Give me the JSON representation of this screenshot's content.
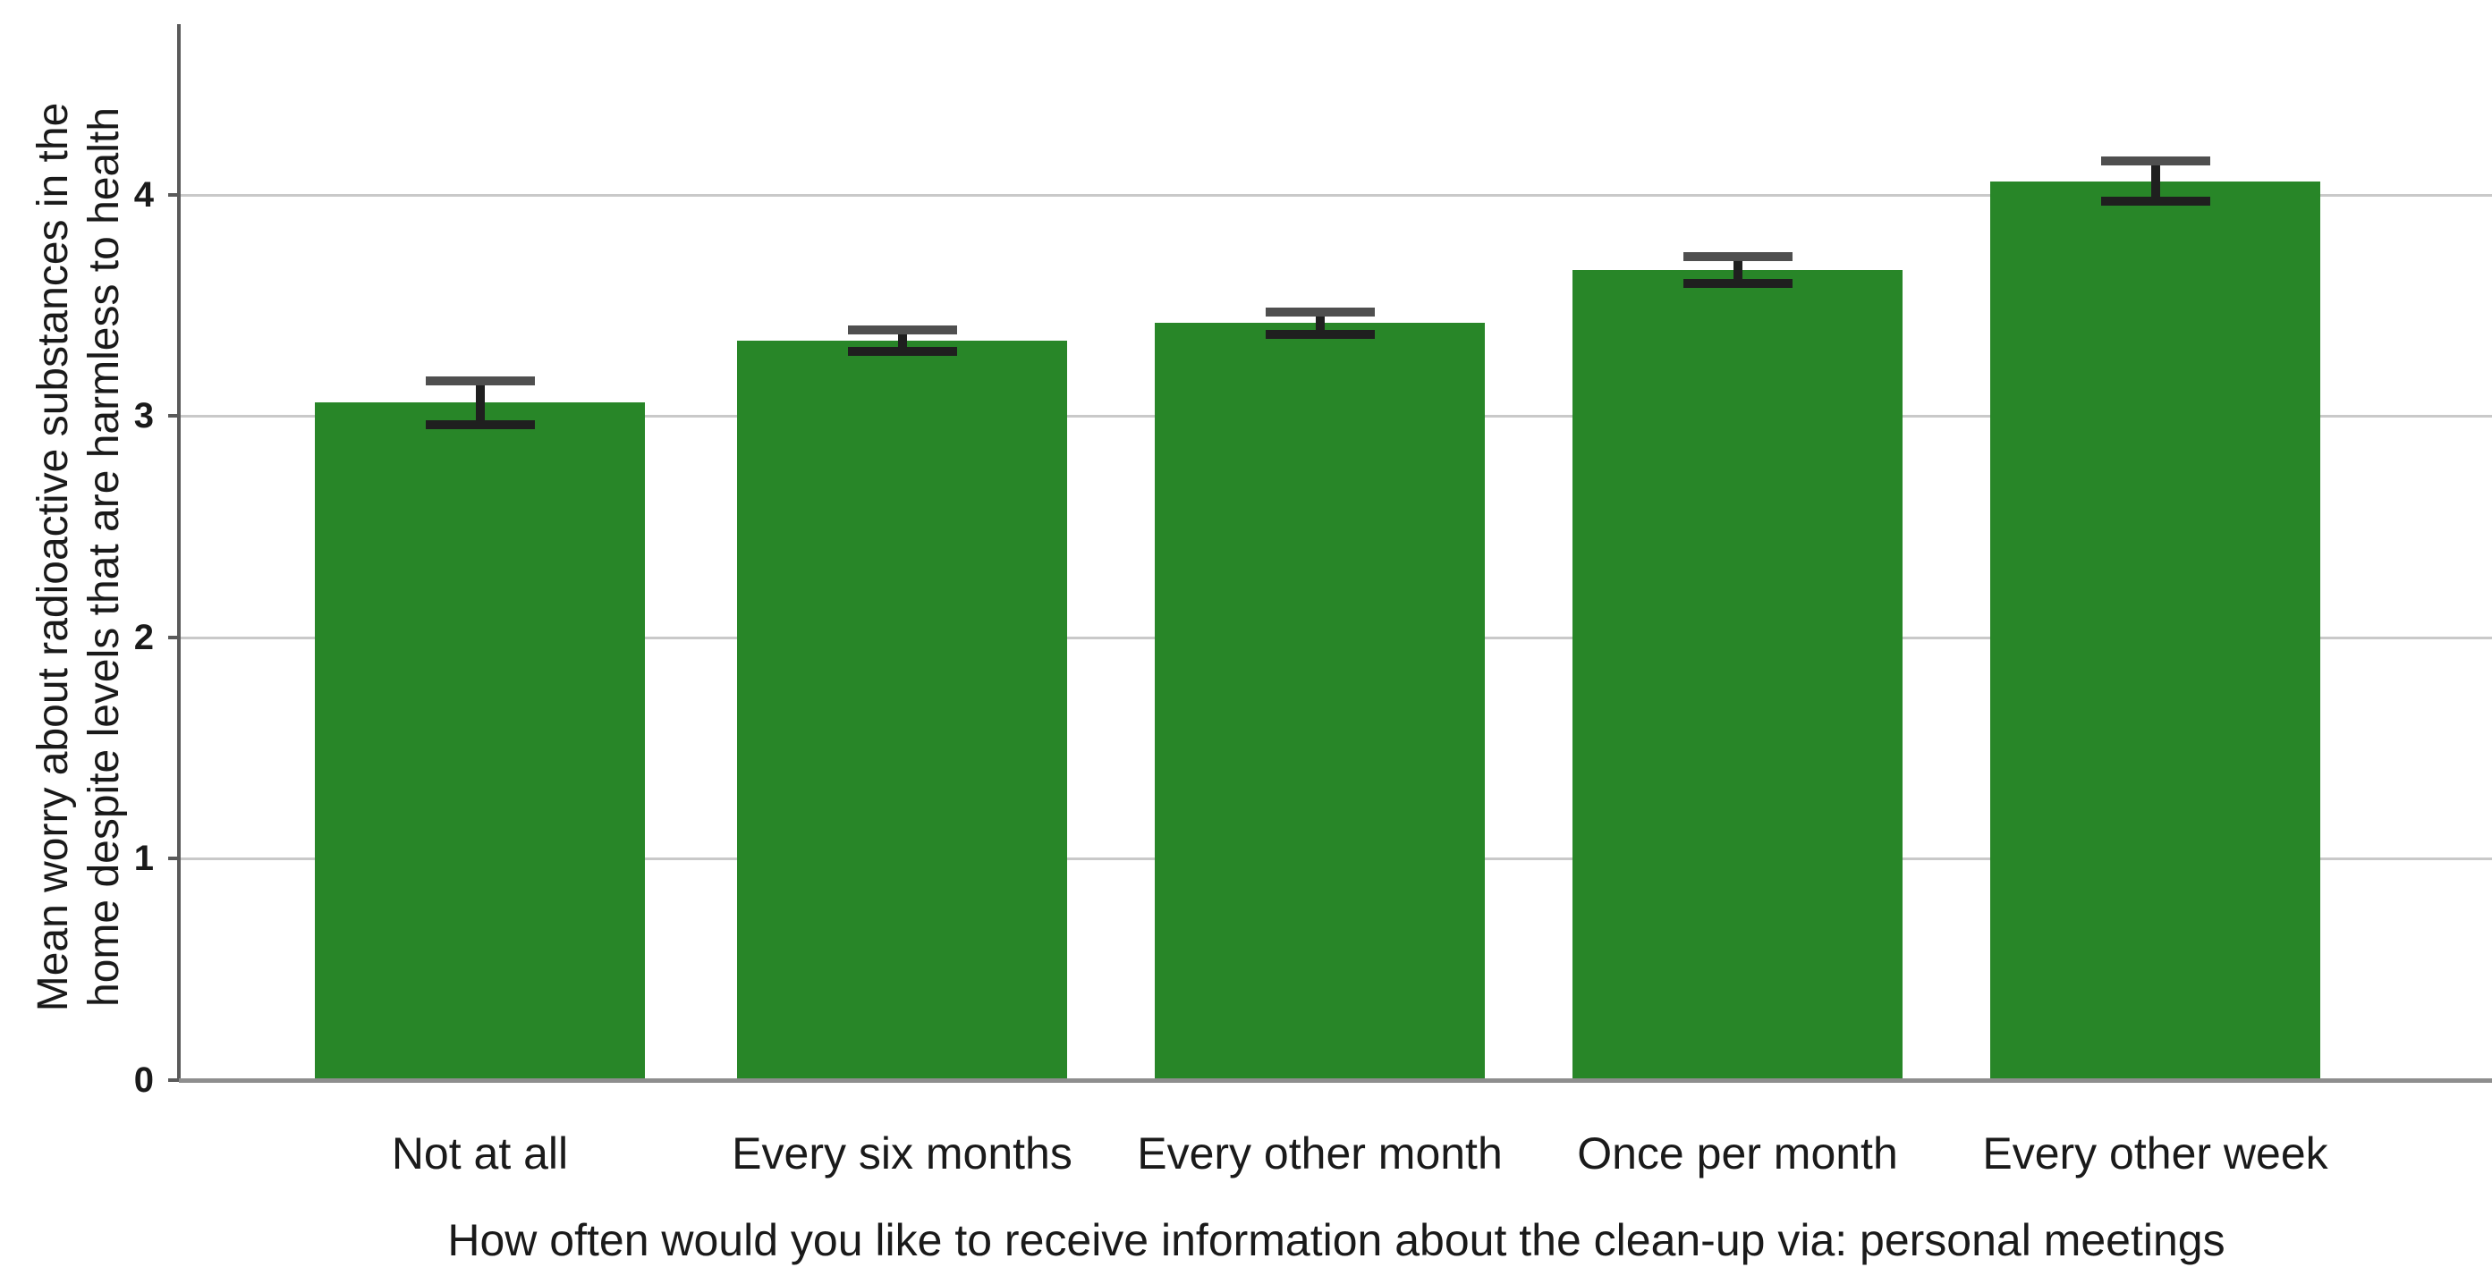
{
  "chart_data": {
    "type": "bar",
    "title": "",
    "categories": [
      "Not at all",
      "Every six months",
      "Every other month",
      "Once per month",
      "Every other week"
    ],
    "values": [
      3.06,
      3.34,
      3.42,
      3.66,
      4.06
    ],
    "error_low": [
      2.96,
      3.29,
      3.37,
      3.6,
      3.97
    ],
    "error_high": [
      3.16,
      3.39,
      3.47,
      3.72,
      4.15
    ],
    "xlabel": "How often would you like to receive information about the clean-up via: personal meetings",
    "ylabel": "Mean worry about radioactive substances in the home despite levels that are harmless to health",
    "ylabel_lines": [
      "Mean worry about radioactive substances in the",
      "home despite levels that are harmless to health"
    ],
    "yticks": [
      "0",
      "1",
      "2",
      "3",
      "4"
    ],
    "ylim": [
      0,
      4.77
    ],
    "grid": true,
    "legend": false,
    "error_bars": true,
    "bar_color": "#288628",
    "grid_color": "#c9c9c9",
    "y_axis_color": "#5a5a5a",
    "x_axis_color": "#8e8e8e",
    "error_bar_color": "#1f1f1f",
    "error_cap_top_color": "#4f4f4f",
    "text_color": "#1a1a1a",
    "background_color": "#ffffff"
  }
}
